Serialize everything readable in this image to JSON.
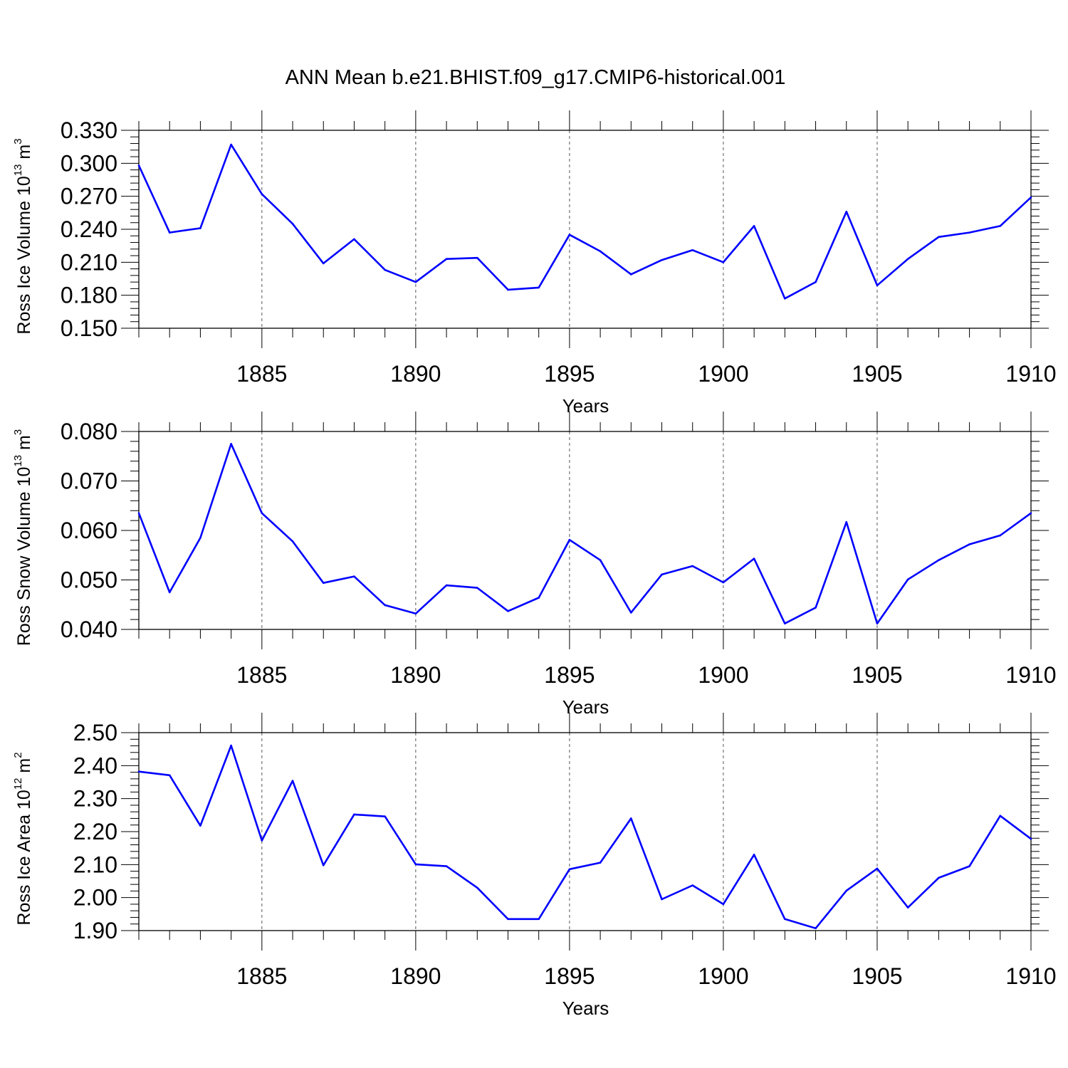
{
  "title": "ANN Mean b.e21.BHIST.f09_g17.CMIP6-historical.001",
  "colors": {
    "line": "#0000ff",
    "axis": "#000000",
    "grid": "#555555"
  },
  "chart_data": [
    {
      "type": "line",
      "ylabel": "Ross Ice Volume 10",
      "ylabel_exp": "13",
      "ylabel_unit": " m",
      "ylabel_unit_exp": "3",
      "xlabel": "Years",
      "xlim": [
        1881,
        1910
      ],
      "ylim": [
        0.15,
        0.33
      ],
      "yticks": [
        "0.150",
        "0.180",
        "0.210",
        "0.240",
        "0.270",
        "0.300",
        "0.330"
      ],
      "xticks": [
        "1885",
        "1890",
        "1895",
        "1900",
        "1905",
        "1910"
      ],
      "x": [
        1881,
        1882,
        1883,
        1884,
        1885,
        1886,
        1887,
        1888,
        1889,
        1890,
        1891,
        1892,
        1893,
        1894,
        1895,
        1896,
        1897,
        1898,
        1899,
        1900,
        1901,
        1902,
        1903,
        1904,
        1905,
        1906,
        1907,
        1908,
        1909,
        1910
      ],
      "values": [
        0.298,
        0.237,
        0.241,
        0.317,
        0.272,
        0.245,
        0.209,
        0.231,
        0.203,
        0.192,
        0.213,
        0.214,
        0.185,
        0.187,
        0.235,
        0.22,
        0.199,
        0.212,
        0.221,
        0.21,
        0.243,
        0.177,
        0.192,
        0.256,
        0.189,
        0.213,
        0.233,
        0.237,
        0.243,
        0.269
      ]
    },
    {
      "type": "line",
      "ylabel": "Ross Snow Volume 10",
      "ylabel_exp": "13",
      "ylabel_unit": " m",
      "ylabel_unit_exp": "3",
      "xlabel": "Years",
      "xlim": [
        1881,
        1910
      ],
      "ylim": [
        0.04,
        0.08
      ],
      "yticks": [
        "0.040",
        "0.050",
        "0.060",
        "0.070",
        "0.080"
      ],
      "xticks": [
        "1885",
        "1890",
        "1895",
        "1900",
        "1905",
        "1910"
      ],
      "x": [
        1881,
        1882,
        1883,
        1884,
        1885,
        1886,
        1887,
        1888,
        1889,
        1890,
        1891,
        1892,
        1893,
        1894,
        1895,
        1896,
        1897,
        1898,
        1899,
        1900,
        1901,
        1902,
        1903,
        1904,
        1905,
        1906,
        1907,
        1908,
        1909,
        1910
      ],
      "values": [
        0.0635,
        0.0475,
        0.0585,
        0.0775,
        0.0635,
        0.0578,
        0.0494,
        0.0507,
        0.0449,
        0.0432,
        0.0489,
        0.0484,
        0.0437,
        0.0464,
        0.0581,
        0.054,
        0.0434,
        0.0511,
        0.0528,
        0.0495,
        0.0543,
        0.0412,
        0.0444,
        0.0617,
        0.0412,
        0.0501,
        0.054,
        0.0572,
        0.059,
        0.0635
      ]
    },
    {
      "type": "line",
      "ylabel": "Ross Ice Area 10",
      "ylabel_exp": "12",
      "ylabel_unit": " m",
      "ylabel_unit_exp": "2",
      "xlabel": "Years",
      "xlim": [
        1881,
        1910
      ],
      "ylim": [
        1.9,
        2.5
      ],
      "yticks": [
        "1.90",
        "2.00",
        "2.10",
        "2.20",
        "2.30",
        "2.40",
        "2.50"
      ],
      "xticks": [
        "1885",
        "1890",
        "1895",
        "1900",
        "1905",
        "1910"
      ],
      "x": [
        1881,
        1882,
        1883,
        1884,
        1885,
        1886,
        1887,
        1888,
        1889,
        1890,
        1891,
        1892,
        1893,
        1894,
        1895,
        1896,
        1897,
        1898,
        1899,
        1900,
        1901,
        1902,
        1903,
        1904,
        1905,
        1906,
        1907,
        1908,
        1909,
        1910
      ],
      "values": [
        2.382,
        2.371,
        2.218,
        2.461,
        2.173,
        2.354,
        2.098,
        2.252,
        2.246,
        2.101,
        2.095,
        2.03,
        1.935,
        1.935,
        2.086,
        2.106,
        2.24,
        1.995,
        2.037,
        1.98,
        2.13,
        1.935,
        1.907,
        2.021,
        2.088,
        1.97,
        2.06,
        2.095,
        2.248,
        2.178
      ]
    }
  ]
}
